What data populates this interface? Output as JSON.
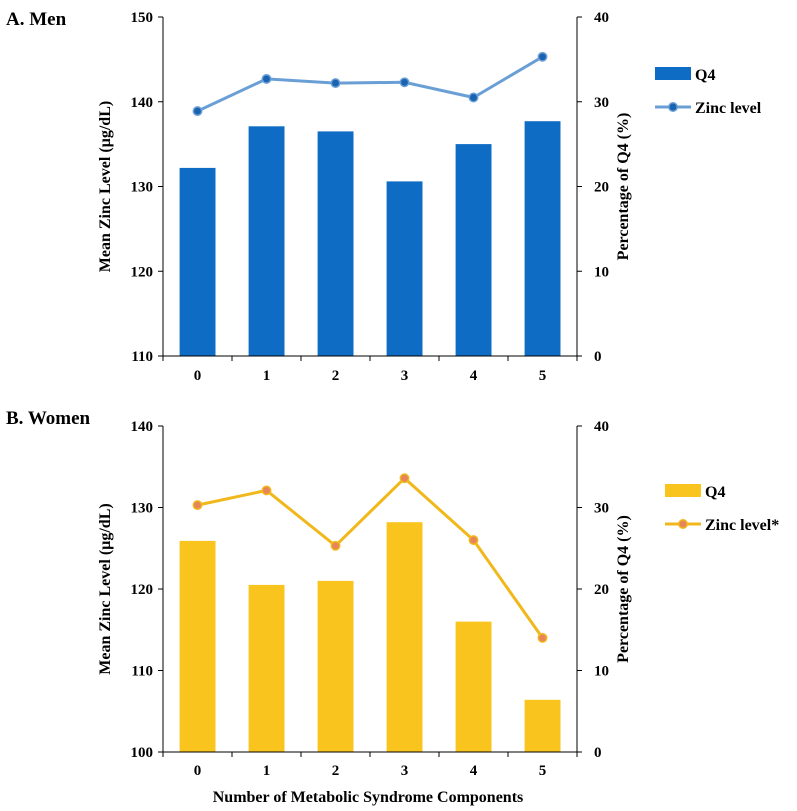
{
  "x_axis_title": "Number of Metabolic Syndrome Components",
  "chart_data": [
    {
      "type": "bar",
      "panel_title": "A. Men",
      "categories": [
        "0",
        "1",
        "2",
        "3",
        "4",
        "5"
      ],
      "series": [
        {
          "name": "Q4",
          "axis": "right",
          "kind": "bar",
          "values": [
            22.2,
            27.1,
            26.5,
            20.6,
            25.0,
            27.7
          ]
        },
        {
          "name": "Zinc level",
          "axis": "left",
          "kind": "line",
          "values": [
            138.9,
            142.7,
            142.2,
            142.3,
            140.5,
            145.3
          ]
        }
      ],
      "ylabel_left": "Mean Zinc Level (µg/dL)",
      "ylabel_right": "Percentage of Q4 (%)",
      "ylim_left": [
        110,
        150
      ],
      "ylim_right": [
        0,
        40
      ],
      "yticks_left": [
        "110",
        "120",
        "130",
        "140",
        "150"
      ],
      "yticks_right": [
        "0",
        "10",
        "20",
        "30",
        "40"
      ],
      "colors": {
        "bar": "#0e6cc4",
        "line": "#6a9fd6",
        "marker": "#1a63b0"
      },
      "grid": false,
      "legend": "right"
    },
    {
      "type": "bar",
      "panel_title": "B. Women",
      "categories": [
        "0",
        "1",
        "2",
        "3",
        "4",
        "5"
      ],
      "series": [
        {
          "name": "Q4",
          "axis": "right",
          "kind": "bar",
          "values": [
            25.9,
            20.5,
            21.0,
            28.2,
            16.0,
            6.4
          ]
        },
        {
          "name": "Zinc level*",
          "axis": "left",
          "kind": "line",
          "values": [
            130.3,
            132.1,
            125.3,
            133.6,
            126.0,
            114.0
          ]
        }
      ],
      "ylabel_left": "Mean Zinc Level (µg/dL)",
      "ylabel_right": "Percentage of Q4 (%)",
      "ylim_left": [
        100,
        140
      ],
      "ylim_right": [
        0,
        40
      ],
      "yticks_left": [
        "100",
        "110",
        "120",
        "130",
        "140"
      ],
      "yticks_right": [
        "0",
        "10",
        "20",
        "30",
        "40"
      ],
      "colors": {
        "bar": "#fac41f",
        "line": "#f1b81c",
        "marker": "#e8845a"
      },
      "grid": false,
      "legend": "right"
    }
  ]
}
